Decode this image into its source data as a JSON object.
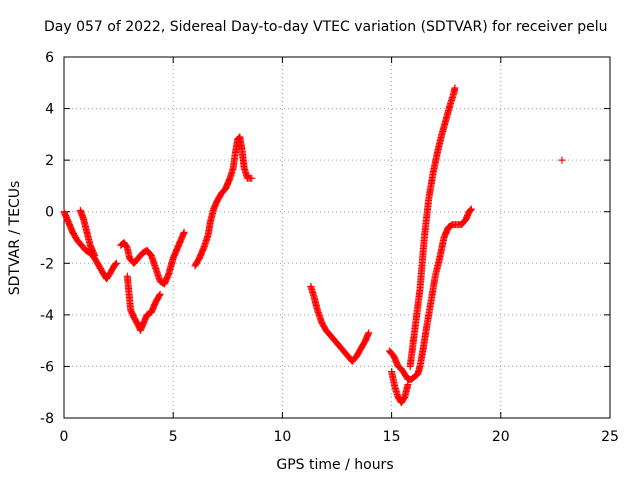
{
  "chart_data": {
    "type": "scatter",
    "title": "Day 057 of 2022, Sidereal Day-to-day VTEC variation (SDTVAR) for receiver pelu",
    "xlabel": "GPS time / hours",
    "ylabel": "SDTVAR / TECUs",
    "xlim": [
      0,
      25
    ],
    "ylim": [
      -8,
      6
    ],
    "x_ticks": [
      "0",
      "5",
      "10",
      "15",
      "20",
      "25"
    ],
    "y_ticks": [
      "-8",
      "-6",
      "-4",
      "-2",
      "0",
      "2",
      "4",
      "6"
    ],
    "grid": true,
    "marker": "plus",
    "marker_color": "#ff0000",
    "series": [
      {
        "values": [
          [
            0.0,
            0.0
          ],
          [
            0.2,
            -0.4
          ],
          [
            0.4,
            -0.8
          ],
          [
            0.6,
            -1.1
          ],
          [
            0.8,
            -1.3
          ],
          [
            1.0,
            -1.5
          ],
          [
            1.2,
            -1.6
          ],
          [
            1.4,
            -1.8
          ],
          [
            1.6,
            -2.1
          ],
          [
            1.8,
            -2.4
          ],
          [
            1.95,
            -2.6
          ],
          [
            2.1,
            -2.4
          ],
          [
            2.3,
            -2.1
          ],
          [
            2.4,
            -2.0
          ]
        ]
      },
      {
        "values": [
          [
            0.75,
            0.05
          ],
          [
            0.9,
            -0.3
          ],
          [
            1.05,
            -0.8
          ],
          [
            1.2,
            -1.3
          ],
          [
            1.3,
            -1.5
          ],
          [
            1.4,
            -1.7
          ]
        ]
      },
      {
        "values": [
          [
            2.6,
            -1.3
          ],
          [
            2.75,
            -1.2
          ],
          [
            2.9,
            -1.4
          ],
          [
            3.0,
            -1.8
          ],
          [
            3.2,
            -2.0
          ],
          [
            3.4,
            -1.8
          ],
          [
            3.6,
            -1.6
          ],
          [
            3.8,
            -1.5
          ],
          [
            4.0,
            -1.7
          ],
          [
            4.2,
            -2.2
          ],
          [
            4.4,
            -2.7
          ],
          [
            4.6,
            -2.8
          ],
          [
            4.8,
            -2.4
          ],
          [
            5.0,
            -1.8
          ],
          [
            5.2,
            -1.4
          ],
          [
            5.4,
            -1.0
          ],
          [
            5.5,
            -0.8
          ]
        ]
      },
      {
        "values": [
          [
            2.9,
            -2.5
          ],
          [
            3.05,
            -3.8
          ],
          [
            3.2,
            -4.1
          ],
          [
            3.4,
            -4.4
          ],
          [
            3.5,
            -4.6
          ],
          [
            3.6,
            -4.4
          ],
          [
            3.8,
            -4.0
          ],
          [
            4.0,
            -3.9
          ],
          [
            4.2,
            -3.5
          ],
          [
            4.4,
            -3.2
          ]
        ]
      },
      {
        "values": [
          [
            6.0,
            -2.1
          ],
          [
            6.2,
            -1.8
          ],
          [
            6.4,
            -1.4
          ],
          [
            6.6,
            -0.9
          ],
          [
            6.7,
            -0.4
          ],
          [
            6.85,
            0.1
          ],
          [
            7.0,
            0.4
          ],
          [
            7.2,
            0.7
          ],
          [
            7.4,
            0.9
          ],
          [
            7.6,
            1.3
          ],
          [
            7.75,
            1.7
          ],
          [
            7.85,
            2.3
          ],
          [
            7.95,
            2.8
          ],
          [
            8.05,
            2.9
          ],
          [
            8.15,
            2.4
          ],
          [
            8.25,
            1.7
          ],
          [
            8.4,
            1.3
          ],
          [
            8.6,
            1.3
          ]
        ]
      },
      {
        "values": [
          [
            11.3,
            -2.9
          ],
          [
            11.45,
            -3.3
          ],
          [
            11.6,
            -3.8
          ],
          [
            11.8,
            -4.3
          ],
          [
            12.0,
            -4.6
          ],
          [
            12.2,
            -4.8
          ],
          [
            12.4,
            -5.0
          ],
          [
            12.6,
            -5.2
          ],
          [
            12.8,
            -5.4
          ],
          [
            13.0,
            -5.6
          ],
          [
            13.2,
            -5.8
          ],
          [
            13.4,
            -5.6
          ],
          [
            13.6,
            -5.3
          ],
          [
            13.8,
            -5.0
          ],
          [
            13.95,
            -4.7
          ]
        ]
      },
      {
        "values": [
          [
            14.9,
            -5.4
          ],
          [
            15.1,
            -5.6
          ],
          [
            15.3,
            -6.0
          ],
          [
            15.45,
            -6.1
          ],
          [
            15.6,
            -6.3
          ],
          [
            15.75,
            -6.5
          ],
          [
            15.9,
            -6.5
          ],
          [
            16.05,
            -6.4
          ],
          [
            16.2,
            -6.3
          ],
          [
            16.3,
            -6.0
          ],
          [
            16.45,
            -5.3
          ],
          [
            16.6,
            -4.5
          ],
          [
            16.8,
            -3.5
          ],
          [
            17.0,
            -2.5
          ],
          [
            17.2,
            -1.8
          ],
          [
            17.4,
            -1.0
          ],
          [
            17.6,
            -0.6
          ],
          [
            17.8,
            -0.5
          ],
          [
            18.0,
            -0.5
          ],
          [
            18.2,
            -0.5
          ],
          [
            18.4,
            -0.3
          ],
          [
            18.55,
            0.0
          ],
          [
            18.65,
            0.1
          ]
        ]
      },
      {
        "values": [
          [
            15.0,
            -6.2
          ],
          [
            15.15,
            -6.8
          ],
          [
            15.3,
            -7.2
          ],
          [
            15.45,
            -7.4
          ],
          [
            15.6,
            -7.2
          ],
          [
            15.75,
            -6.7
          ]
        ]
      },
      {
        "values": [
          [
            15.85,
            -6.0
          ],
          [
            16.0,
            -5.0
          ],
          [
            16.15,
            -4.0
          ],
          [
            16.3,
            -3.0
          ],
          [
            16.5,
            -1.0
          ],
          [
            16.7,
            0.5
          ],
          [
            16.9,
            1.5
          ],
          [
            17.1,
            2.3
          ],
          [
            17.3,
            3.0
          ],
          [
            17.5,
            3.6
          ],
          [
            17.7,
            4.2
          ],
          [
            17.85,
            4.6
          ],
          [
            17.9,
            4.8
          ]
        ]
      },
      {
        "values": [
          [
            22.8,
            2.0
          ]
        ]
      }
    ]
  }
}
